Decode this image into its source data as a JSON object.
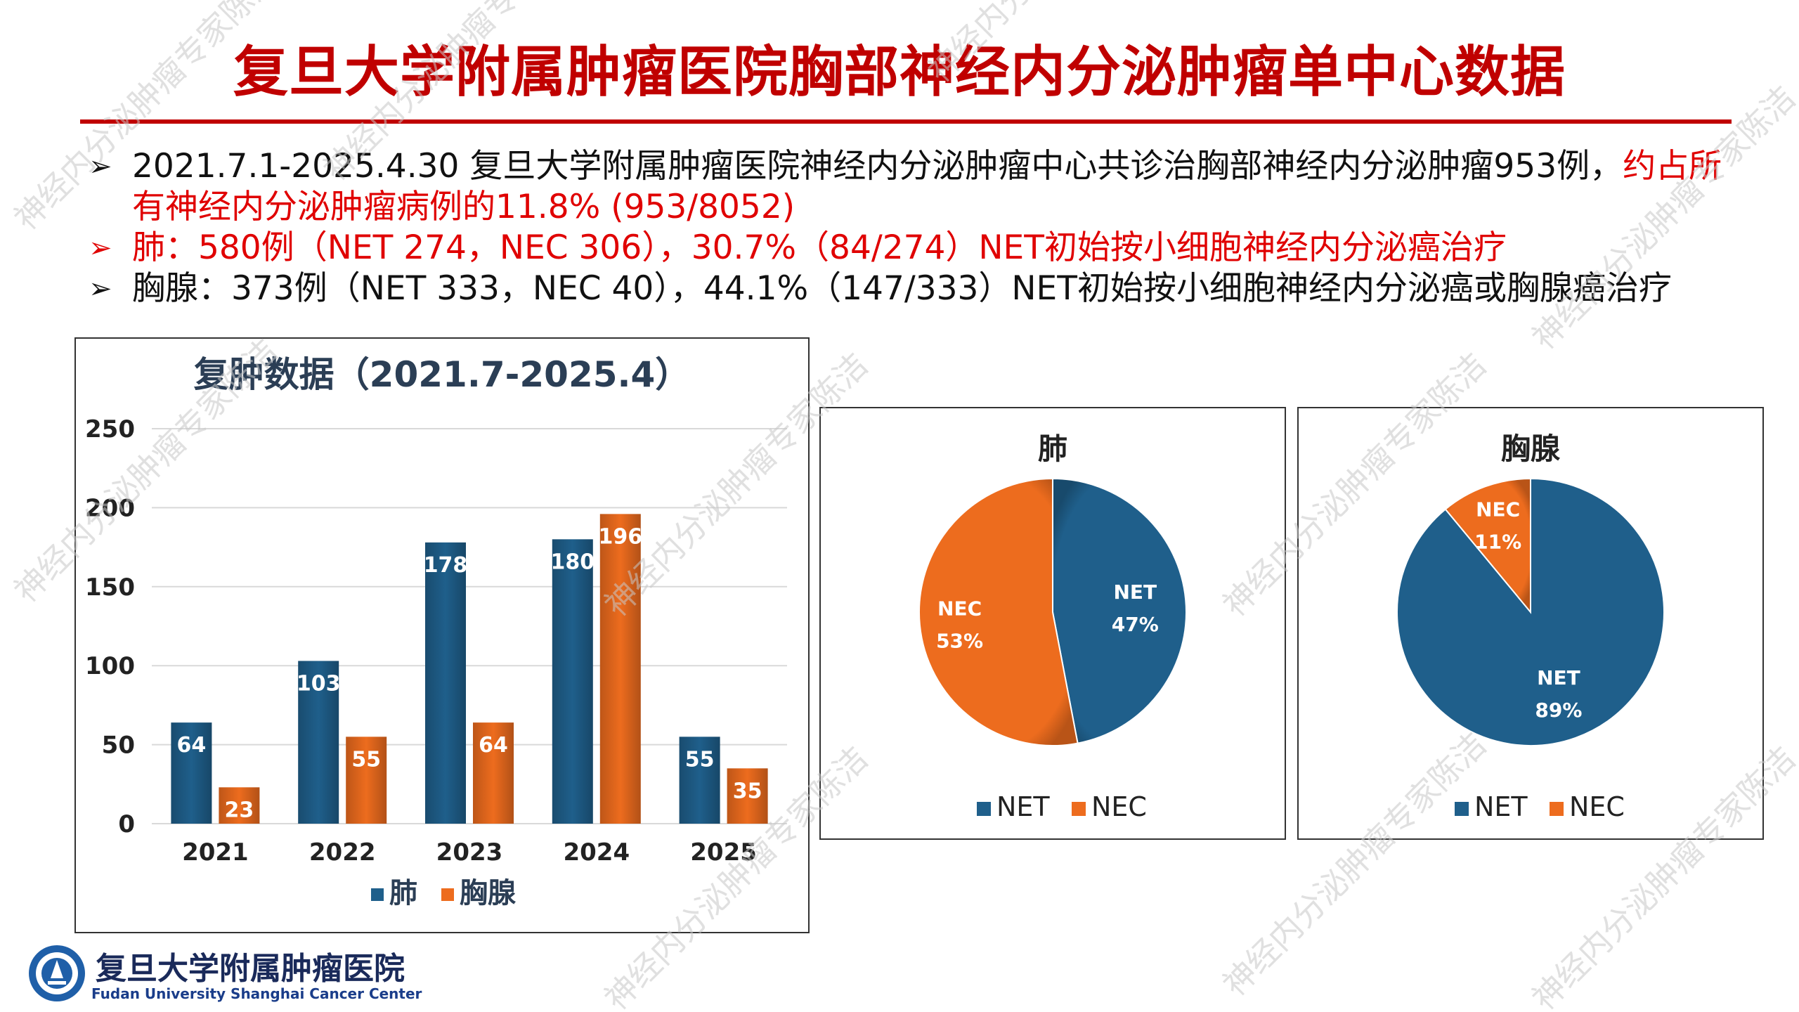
{
  "title": "复旦大学附属肿瘤医院胸部神经内分泌肿瘤单中心数据",
  "bullets": {
    "b1_black": "2021.7.1-2025.4.30 复旦大学附属肿瘤医院神经内分泌肿瘤中心共诊治胸部神经内分泌肿瘤953例，",
    "b1_red": "约占所有神经内分泌肿瘤病例的11.8% (953/8052)",
    "b2": "肺：580例（NET 274，NEC 306），30.7%（84/274）NET初始按小细胞神经内分泌癌治疗",
    "b3": "胸腺：373例（NET 333，NEC 40），44.1%（147/333）NET初始按小细胞神经内分泌癌或胸腺癌治疗",
    "arrow": "➢"
  },
  "chart_data": [
    {
      "type": "bar",
      "title": "复肿数据（2021.7-2025.4）",
      "categories": [
        "2021",
        "2022",
        "2023",
        "2024",
        "2025"
      ],
      "series": [
        {
          "name": "肺",
          "values": [
            64,
            103,
            178,
            180,
            55
          ],
          "color": "#1f5f8b"
        },
        {
          "name": "胸腺",
          "values": [
            23,
            55,
            64,
            196,
            35
          ],
          "color": "#ed6c1e"
        }
      ],
      "ylim": [
        0,
        250
      ],
      "yticks": [
        0,
        50,
        100,
        150,
        200,
        250
      ],
      "grid": true,
      "legend": "bottom"
    },
    {
      "type": "pie",
      "title": "肺",
      "slices": [
        {
          "name": "NET",
          "value": 47,
          "label": "47%",
          "color": "#1f5f8b"
        },
        {
          "name": "NEC",
          "value": 53,
          "label": "53%",
          "color": "#ed6c1e"
        }
      ],
      "legend": "bottom"
    },
    {
      "type": "pie",
      "title": "胸腺",
      "slices": [
        {
          "name": "NET",
          "value": 89,
          "label": "89%",
          "color": "#1f5f8b"
        },
        {
          "name": "NEC",
          "value": 11,
          "label": "11%",
          "color": "#ed6c1e"
        }
      ],
      "legend": "bottom"
    }
  ],
  "watermark": "神经内分泌肿瘤专家陈洁",
  "logo": {
    "cn": "复旦大学附属肿瘤医院",
    "en": "Fudan University Shanghai Cancer Center"
  }
}
